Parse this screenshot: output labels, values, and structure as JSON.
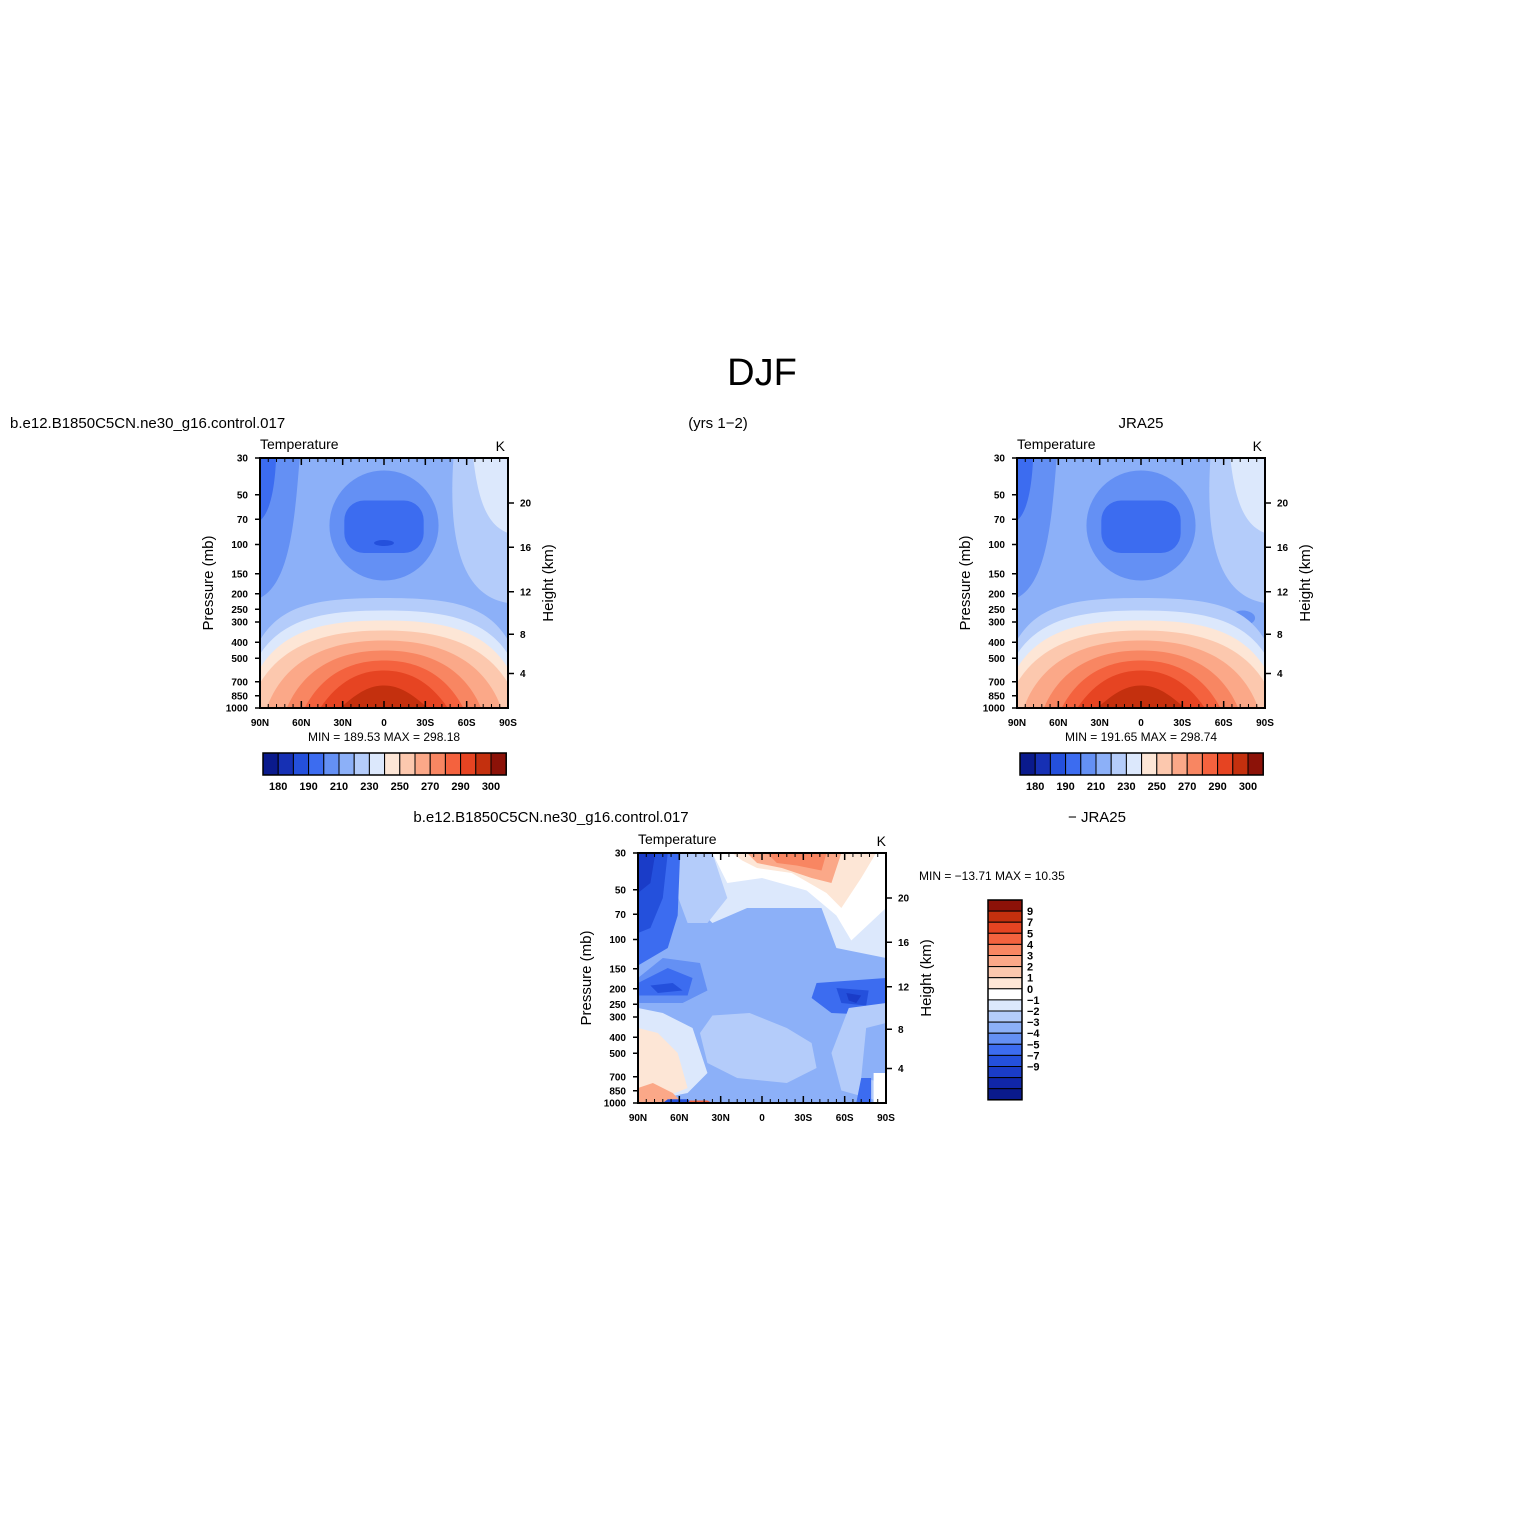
{
  "page": {
    "title": "DJF",
    "left_header": "b.e12.B1850C5CN.ne30_g16.control.017",
    "center_header": "(yrs 1−2)",
    "right_header": "JRA25",
    "diff_header_left": "b.e12.B1850C5CN.ne30_g16.control.017",
    "diff_header_right": "− JRA25"
  },
  "colors": {
    "temp_palette": [
      "#0a1a8c",
      "#1630b4",
      "#2450dc",
      "#3c6cf0",
      "#6490f4",
      "#8cb0f8",
      "#b4ccfa",
      "#dce8fc",
      "#fde6d6",
      "#fcc8ae",
      "#fba888",
      "#f88662",
      "#f4623e",
      "#e64422",
      "#c4300e",
      "#8c1208"
    ],
    "diff_palette": [
      "#0a1a8c",
      "#1026a8",
      "#1a3cc8",
      "#2450dc",
      "#3c6cf0",
      "#6490f4",
      "#8cb0f8",
      "#b4ccfa",
      "#dce8fc",
      "#ffffff",
      "#fde6d6",
      "#fcc8ae",
      "#fba888",
      "#f88662",
      "#f4623e",
      "#e64422",
      "#c4300e",
      "#8c1208"
    ]
  },
  "chart_data": [
    {
      "type": "heatmap",
      "name": "model",
      "title": "Temperature",
      "units": "K",
      "ylabel": "Pressure (mb)",
      "y2label": "Height (km)",
      "x_ticks": [
        "90N",
        "60N",
        "30N",
        "0",
        "30S",
        "60S",
        "90S"
      ],
      "y_ticks": [
        "30",
        "50",
        "70",
        "100",
        "150",
        "200",
        "250",
        "300",
        "400",
        "500",
        "700",
        "850",
        "1000"
      ],
      "y2_ticks": [
        "20",
        "16",
        "12",
        "8",
        "4"
      ],
      "stats": "MIN =  189.53   MAX =  298.18",
      "colorbar_labels": [
        "180",
        "190",
        "210",
        "230",
        "250",
        "270",
        "290",
        "300"
      ],
      "max_temp": 298.18
    },
    {
      "type": "heatmap",
      "name": "obs",
      "title": "Temperature",
      "units": "K",
      "ylabel": "Pressure (mb)",
      "y2label": "Height (km)",
      "x_ticks": [
        "90N",
        "60N",
        "30N",
        "0",
        "30S",
        "60S",
        "90S"
      ],
      "y_ticks": [
        "30",
        "50",
        "70",
        "100",
        "150",
        "200",
        "250",
        "300",
        "400",
        "500",
        "700",
        "850",
        "1000"
      ],
      "y2_ticks": [
        "20",
        "16",
        "12",
        "8",
        "4"
      ],
      "stats": "MIN =  191.65   MAX =  298.74",
      "colorbar_labels": [
        "180",
        "190",
        "210",
        "230",
        "250",
        "270",
        "290",
        "300"
      ],
      "max_temp": 298.74
    },
    {
      "type": "heatmap",
      "name": "difference",
      "title": "Temperature",
      "units": "K",
      "ylabel": "Pressure (mb)",
      "y2label": "Height (km)",
      "x_ticks": [
        "90N",
        "60N",
        "30N",
        "0",
        "30S",
        "60S",
        "90S"
      ],
      "y_ticks": [
        "30",
        "50",
        "70",
        "100",
        "150",
        "200",
        "250",
        "300",
        "400",
        "500",
        "700",
        "850",
        "1000"
      ],
      "y2_ticks": [
        "20",
        "16",
        "12",
        "8",
        "4"
      ],
      "stats": "MIN = −13.71   MAX =   10.35",
      "colorbar_labels": [
        "9",
        "7",
        "5",
        "4",
        "3",
        "2",
        "1",
        "0",
        "−1",
        "−2",
        "−3",
        "−4",
        "−5",
        "−7",
        "−9"
      ]
    }
  ]
}
